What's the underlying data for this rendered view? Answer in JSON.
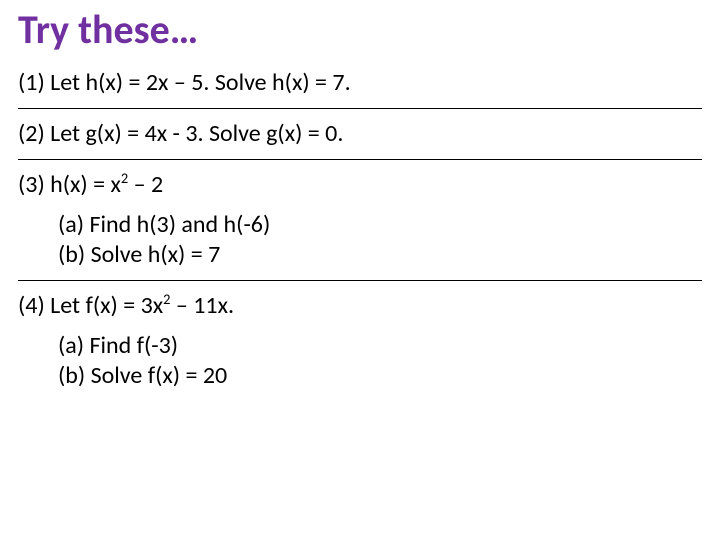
{
  "title": {
    "text": "Try these…",
    "color": "#7030a0"
  },
  "p1": "(1) Let h(x) = 2x – 5. Solve h(x) = 7.",
  "p2": "(2) Let g(x) = 4x - 3. Solve g(x) = 0.",
  "p3": {
    "stem_a": "(3) h(x) = x",
    "exp": "2",
    "stem_b": " – 2",
    "a": "(a) Find h(3) and h(-6)",
    "b": "(b) Solve h(x) = 7"
  },
  "p4": {
    "stem_a": "(4) Let f(x) = 3x",
    "exp": "2",
    "stem_b": " – 11x.",
    "a": "(a) Find f(-3)",
    "b": "(b) Solve f(x) = 20"
  }
}
